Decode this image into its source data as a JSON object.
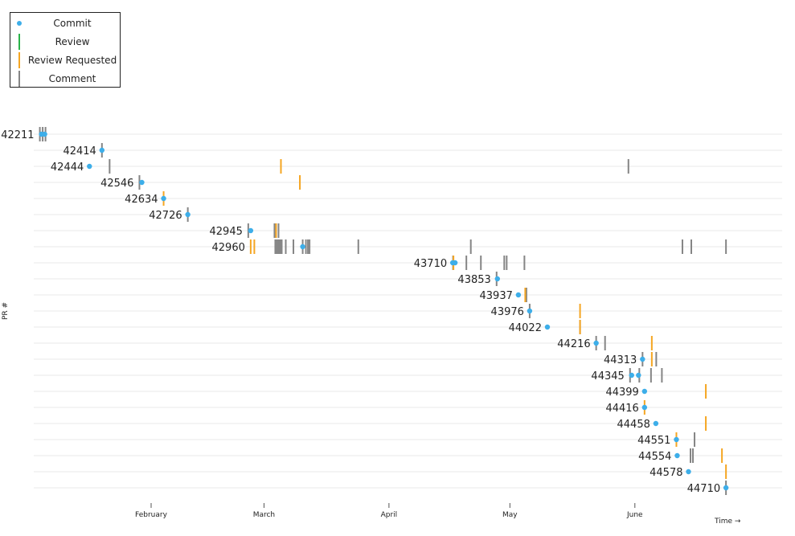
{
  "chart_data": {
    "type": "timeline",
    "y_title": "PR #",
    "x_title": "Time →",
    "x_ticks": [
      "February",
      "March",
      "April",
      "May",
      "June"
    ],
    "x_range_days": [
      -22,
      164
    ],
    "tick_days": [
      0,
      28,
      59,
      89,
      120
    ],
    "legend": {
      "position": "top-left",
      "items": [
        {
          "label": "Commit",
          "kind": "commit",
          "color": "#3daee9"
        },
        {
          "label": "Review",
          "kind": "review",
          "color": "#2bb34a"
        },
        {
          "label": "Review Requested",
          "kind": "review_requested",
          "color": "#f5a623"
        },
        {
          "label": "Comment",
          "kind": "comment",
          "color": "#858585"
        }
      ]
    },
    "colors": {
      "commit": "#3daee9",
      "review": "#2bb34a",
      "review_requested": "#f5a623",
      "comment": "#858585",
      "grid": "#e8e8e8"
    },
    "rows": [
      {
        "pr": "42211",
        "commit": [
          -27.2,
          -26.4
        ],
        "review_requested": [],
        "comment": [
          -27.6,
          -26.9,
          -26.2
        ]
      },
      {
        "pr": "42414",
        "commit": [
          -12.2
        ],
        "review_requested": [],
        "comment": [
          -12.2
        ]
      },
      {
        "pr": "42444",
        "commit": [
          -15.3
        ],
        "review_requested": [
          32.2
        ],
        "comment": [
          -10.3,
          118.4
        ]
      },
      {
        "pr": "42546",
        "commit": [
          -2.3
        ],
        "review_requested": [
          36.9
        ],
        "comment": [
          -2.9
        ]
      },
      {
        "pr": "42634",
        "commit": [
          3.1
        ],
        "review_requested": [
          3.1
        ],
        "comment": []
      },
      {
        "pr": "42726",
        "commit": [
          9.1
        ],
        "review_requested": [],
        "comment": [
          9.1
        ]
      },
      {
        "pr": "42945",
        "commit": [
          24.7
        ],
        "review_requested": [
          31.0
        ],
        "comment": [
          24.1,
          30.6,
          31.6
        ]
      },
      {
        "pr": "42960",
        "commit": [
          37.6
        ],
        "review_requested": [
          24.7,
          25.6
        ],
        "comment": [
          30.8,
          31.2,
          31.6,
          32.0,
          32.4,
          33.4,
          35.3,
          37.6,
          38.4,
          38.9,
          39.3,
          51.4,
          79.3,
          131.8,
          134.0,
          142.6
        ]
      },
      {
        "pr": "43710",
        "commit": [
          74.8,
          75.4
        ],
        "review_requested": [
          75.0
        ],
        "comment": [
          74.9,
          78.2,
          81.8,
          87.6,
          88.2,
          92.6
        ]
      },
      {
        "pr": "43853",
        "commit": [
          85.9
        ],
        "review_requested": [],
        "comment": [
          85.7
        ]
      },
      {
        "pr": "43937",
        "commit": [
          91.1
        ],
        "review_requested": [
          92.8
        ],
        "comment": [
          93.1
        ]
      },
      {
        "pr": "43976",
        "commit": [
          93.9
        ],
        "review_requested": [
          106.4
        ],
        "comment": [
          93.9
        ]
      },
      {
        "pr": "44022",
        "commit": [
          98.3
        ],
        "review_requested": [
          106.4
        ],
        "comment": [
          106.4
        ]
      },
      {
        "pr": "44216",
        "commit": [
          110.4
        ],
        "review_requested": [
          124.2
        ],
        "comment": [
          110.4,
          112.6
        ]
      },
      {
        "pr": "44313",
        "commit": [
          121.9
        ],
        "review_requested": [
          124.2
        ],
        "comment": [
          121.9,
          125.3
        ]
      },
      {
        "pr": "44345",
        "commit": [
          119.2,
          120.9
        ],
        "review_requested": [],
        "comment": [
          118.8,
          121.1,
          124.0,
          126.7
        ]
      },
      {
        "pr": "44399",
        "commit": [
          122.4
        ],
        "review_requested": [
          137.6
        ],
        "comment": []
      },
      {
        "pr": "44416",
        "commit": [
          122.4
        ],
        "review_requested": [
          122.4
        ],
        "comment": []
      },
      {
        "pr": "44458",
        "commit": [
          125.2
        ],
        "review_requested": [
          137.6
        ],
        "comment": []
      },
      {
        "pr": "44551",
        "commit": [
          130.3
        ],
        "review_requested": [
          130.3
        ],
        "comment": [
          134.8
        ]
      },
      {
        "pr": "44554",
        "commit": [
          130.5
        ],
        "review_requested": [
          141.6
        ],
        "comment": [
          133.8,
          134.4
        ]
      },
      {
        "pr": "44578",
        "commit": [
          133.3
        ],
        "review_requested": [
          142.6
        ],
        "comment": []
      },
      {
        "pr": "44710",
        "commit": [
          142.6
        ],
        "review_requested": [],
        "comment": [
          142.6
        ]
      }
    ]
  }
}
